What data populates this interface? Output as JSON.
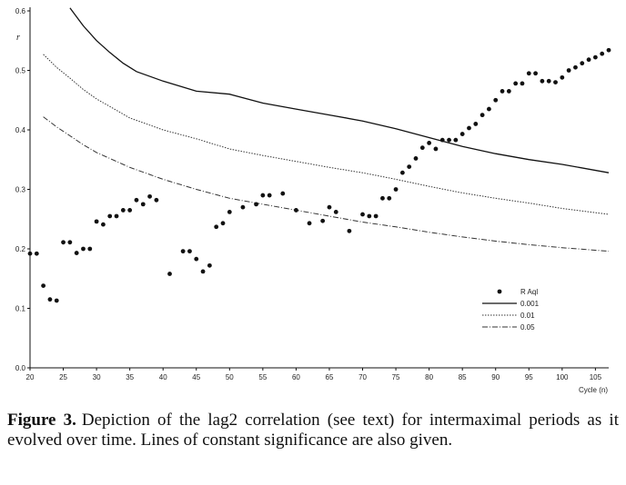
{
  "chart_data": {
    "type": "scatter",
    "ylabel": "r",
    "xlabel": "Cycle (n)",
    "xlim": [
      20,
      107
    ],
    "ylim": [
      0,
      0.6
    ],
    "x_ticks": [
      20,
      25,
      30,
      35,
      40,
      45,
      50,
      55,
      60,
      65,
      70,
      75,
      80,
      85,
      90,
      95,
      100,
      105
    ],
    "x_tick_labels": [
      "20",
      "25",
      "30",
      "35",
      "40",
      "45",
      "50",
      "55",
      "60",
      "65",
      "70",
      "75",
      "80",
      "85",
      "90",
      "95",
      "100",
      "105"
    ],
    "y_ticks": [
      0,
      0.1,
      0.2,
      0.3,
      0.4,
      0.5,
      0.6
    ],
    "y_tick_labels": [
      "0.0",
      "0.1",
      "0.2",
      "0.3",
      "0.4",
      "0.5",
      "0.6"
    ],
    "legend_position": "right",
    "series": [
      {
        "name": "R Aql",
        "style": "dots",
        "points": [
          [
            20,
            0.192
          ],
          [
            21,
            0.192
          ],
          [
            22,
            0.138
          ],
          [
            23,
            0.115
          ],
          [
            24,
            0.113
          ],
          [
            25,
            0.211
          ],
          [
            26,
            0.211
          ],
          [
            27,
            0.193
          ],
          [
            28,
            0.2
          ],
          [
            29,
            0.2
          ],
          [
            30,
            0.246
          ],
          [
            31,
            0.241
          ],
          [
            32,
            0.255
          ],
          [
            33,
            0.255
          ],
          [
            34,
            0.265
          ],
          [
            35,
            0.265
          ],
          [
            36,
            0.282
          ],
          [
            37,
            0.275
          ],
          [
            38,
            0.288
          ],
          [
            39,
            0.282
          ],
          [
            41,
            0.158
          ],
          [
            43,
            0.196
          ],
          [
            44,
            0.196
          ],
          [
            45,
            0.183
          ],
          [
            46,
            0.162
          ],
          [
            47,
            0.172
          ],
          [
            48,
            0.237
          ],
          [
            49,
            0.243
          ],
          [
            50,
            0.262
          ],
          [
            52,
            0.27
          ],
          [
            54,
            0.275
          ],
          [
            55,
            0.29
          ],
          [
            56,
            0.29
          ],
          [
            58,
            0.293
          ],
          [
            60,
            0.265
          ],
          [
            62,
            0.243
          ],
          [
            64,
            0.247
          ],
          [
            65,
            0.27
          ],
          [
            66,
            0.262
          ],
          [
            68,
            0.23
          ],
          [
            70,
            0.258
          ],
          [
            71,
            0.255
          ],
          [
            72,
            0.255
          ],
          [
            73,
            0.285
          ],
          [
            74,
            0.285
          ],
          [
            75,
            0.3
          ],
          [
            76,
            0.328
          ],
          [
            77,
            0.338
          ],
          [
            78,
            0.352
          ],
          [
            79,
            0.37
          ],
          [
            80,
            0.378
          ],
          [
            81,
            0.368
          ],
          [
            82,
            0.383
          ],
          [
            83,
            0.383
          ],
          [
            84,
            0.383
          ],
          [
            85,
            0.393
          ],
          [
            86,
            0.403
          ],
          [
            87,
            0.41
          ],
          [
            88,
            0.425
          ],
          [
            89,
            0.435
          ],
          [
            90,
            0.45
          ],
          [
            91,
            0.465
          ],
          [
            92,
            0.465
          ],
          [
            93,
            0.478
          ],
          [
            94,
            0.478
          ],
          [
            95,
            0.495
          ],
          [
            96,
            0.495
          ],
          [
            97,
            0.482
          ],
          [
            98,
            0.482
          ],
          [
            99,
            0.48
          ],
          [
            100,
            0.488
          ],
          [
            101,
            0.5
          ],
          [
            102,
            0.505
          ],
          [
            103,
            0.512
          ],
          [
            104,
            0.518
          ],
          [
            105,
            0.522
          ],
          [
            106,
            0.528
          ],
          [
            107,
            0.534
          ]
        ]
      },
      {
        "name": "0.001",
        "style": "solid",
        "points": [
          [
            26,
            0.605
          ],
          [
            28,
            0.575
          ],
          [
            30,
            0.55
          ],
          [
            32,
            0.53
          ],
          [
            34,
            0.512
          ],
          [
            36,
            0.498
          ],
          [
            40,
            0.482
          ],
          [
            45,
            0.465
          ],
          [
            50,
            0.46
          ],
          [
            55,
            0.445
          ],
          [
            60,
            0.435
          ],
          [
            65,
            0.425
          ],
          [
            70,
            0.415
          ],
          [
            75,
            0.402
          ],
          [
            80,
            0.387
          ],
          [
            85,
            0.372
          ],
          [
            90,
            0.36
          ],
          [
            95,
            0.35
          ],
          [
            100,
            0.342
          ],
          [
            107,
            0.328
          ]
        ]
      },
      {
        "name": "0.01",
        "style": "dotted",
        "points": [
          [
            22,
            0.527
          ],
          [
            24,
            0.505
          ],
          [
            26,
            0.487
          ],
          [
            28,
            0.468
          ],
          [
            30,
            0.452
          ],
          [
            35,
            0.42
          ],
          [
            40,
            0.4
          ],
          [
            45,
            0.385
          ],
          [
            50,
            0.368
          ],
          [
            55,
            0.357
          ],
          [
            60,
            0.347
          ],
          [
            65,
            0.337
          ],
          [
            70,
            0.328
          ],
          [
            75,
            0.317
          ],
          [
            80,
            0.305
          ],
          [
            85,
            0.294
          ],
          [
            90,
            0.285
          ],
          [
            95,
            0.277
          ],
          [
            100,
            0.268
          ],
          [
            107,
            0.258
          ]
        ]
      },
      {
        "name": "0.05",
        "style": "dashdot",
        "points": [
          [
            22,
            0.422
          ],
          [
            24,
            0.405
          ],
          [
            26,
            0.39
          ],
          [
            28,
            0.375
          ],
          [
            30,
            0.362
          ],
          [
            35,
            0.337
          ],
          [
            40,
            0.317
          ],
          [
            45,
            0.3
          ],
          [
            50,
            0.285
          ],
          [
            55,
            0.275
          ],
          [
            60,
            0.265
          ],
          [
            65,
            0.255
          ],
          [
            70,
            0.245
          ],
          [
            75,
            0.237
          ],
          [
            80,
            0.228
          ],
          [
            85,
            0.22
          ],
          [
            90,
            0.213
          ],
          [
            95,
            0.207
          ],
          [
            100,
            0.202
          ],
          [
            107,
            0.196
          ]
        ]
      }
    ]
  },
  "caption": {
    "label": "Figure 3.",
    "text": "Depiction of the lag2 correlation (see text) for intermaximal periods as it evolved over time. Lines of constant significance are also given."
  }
}
